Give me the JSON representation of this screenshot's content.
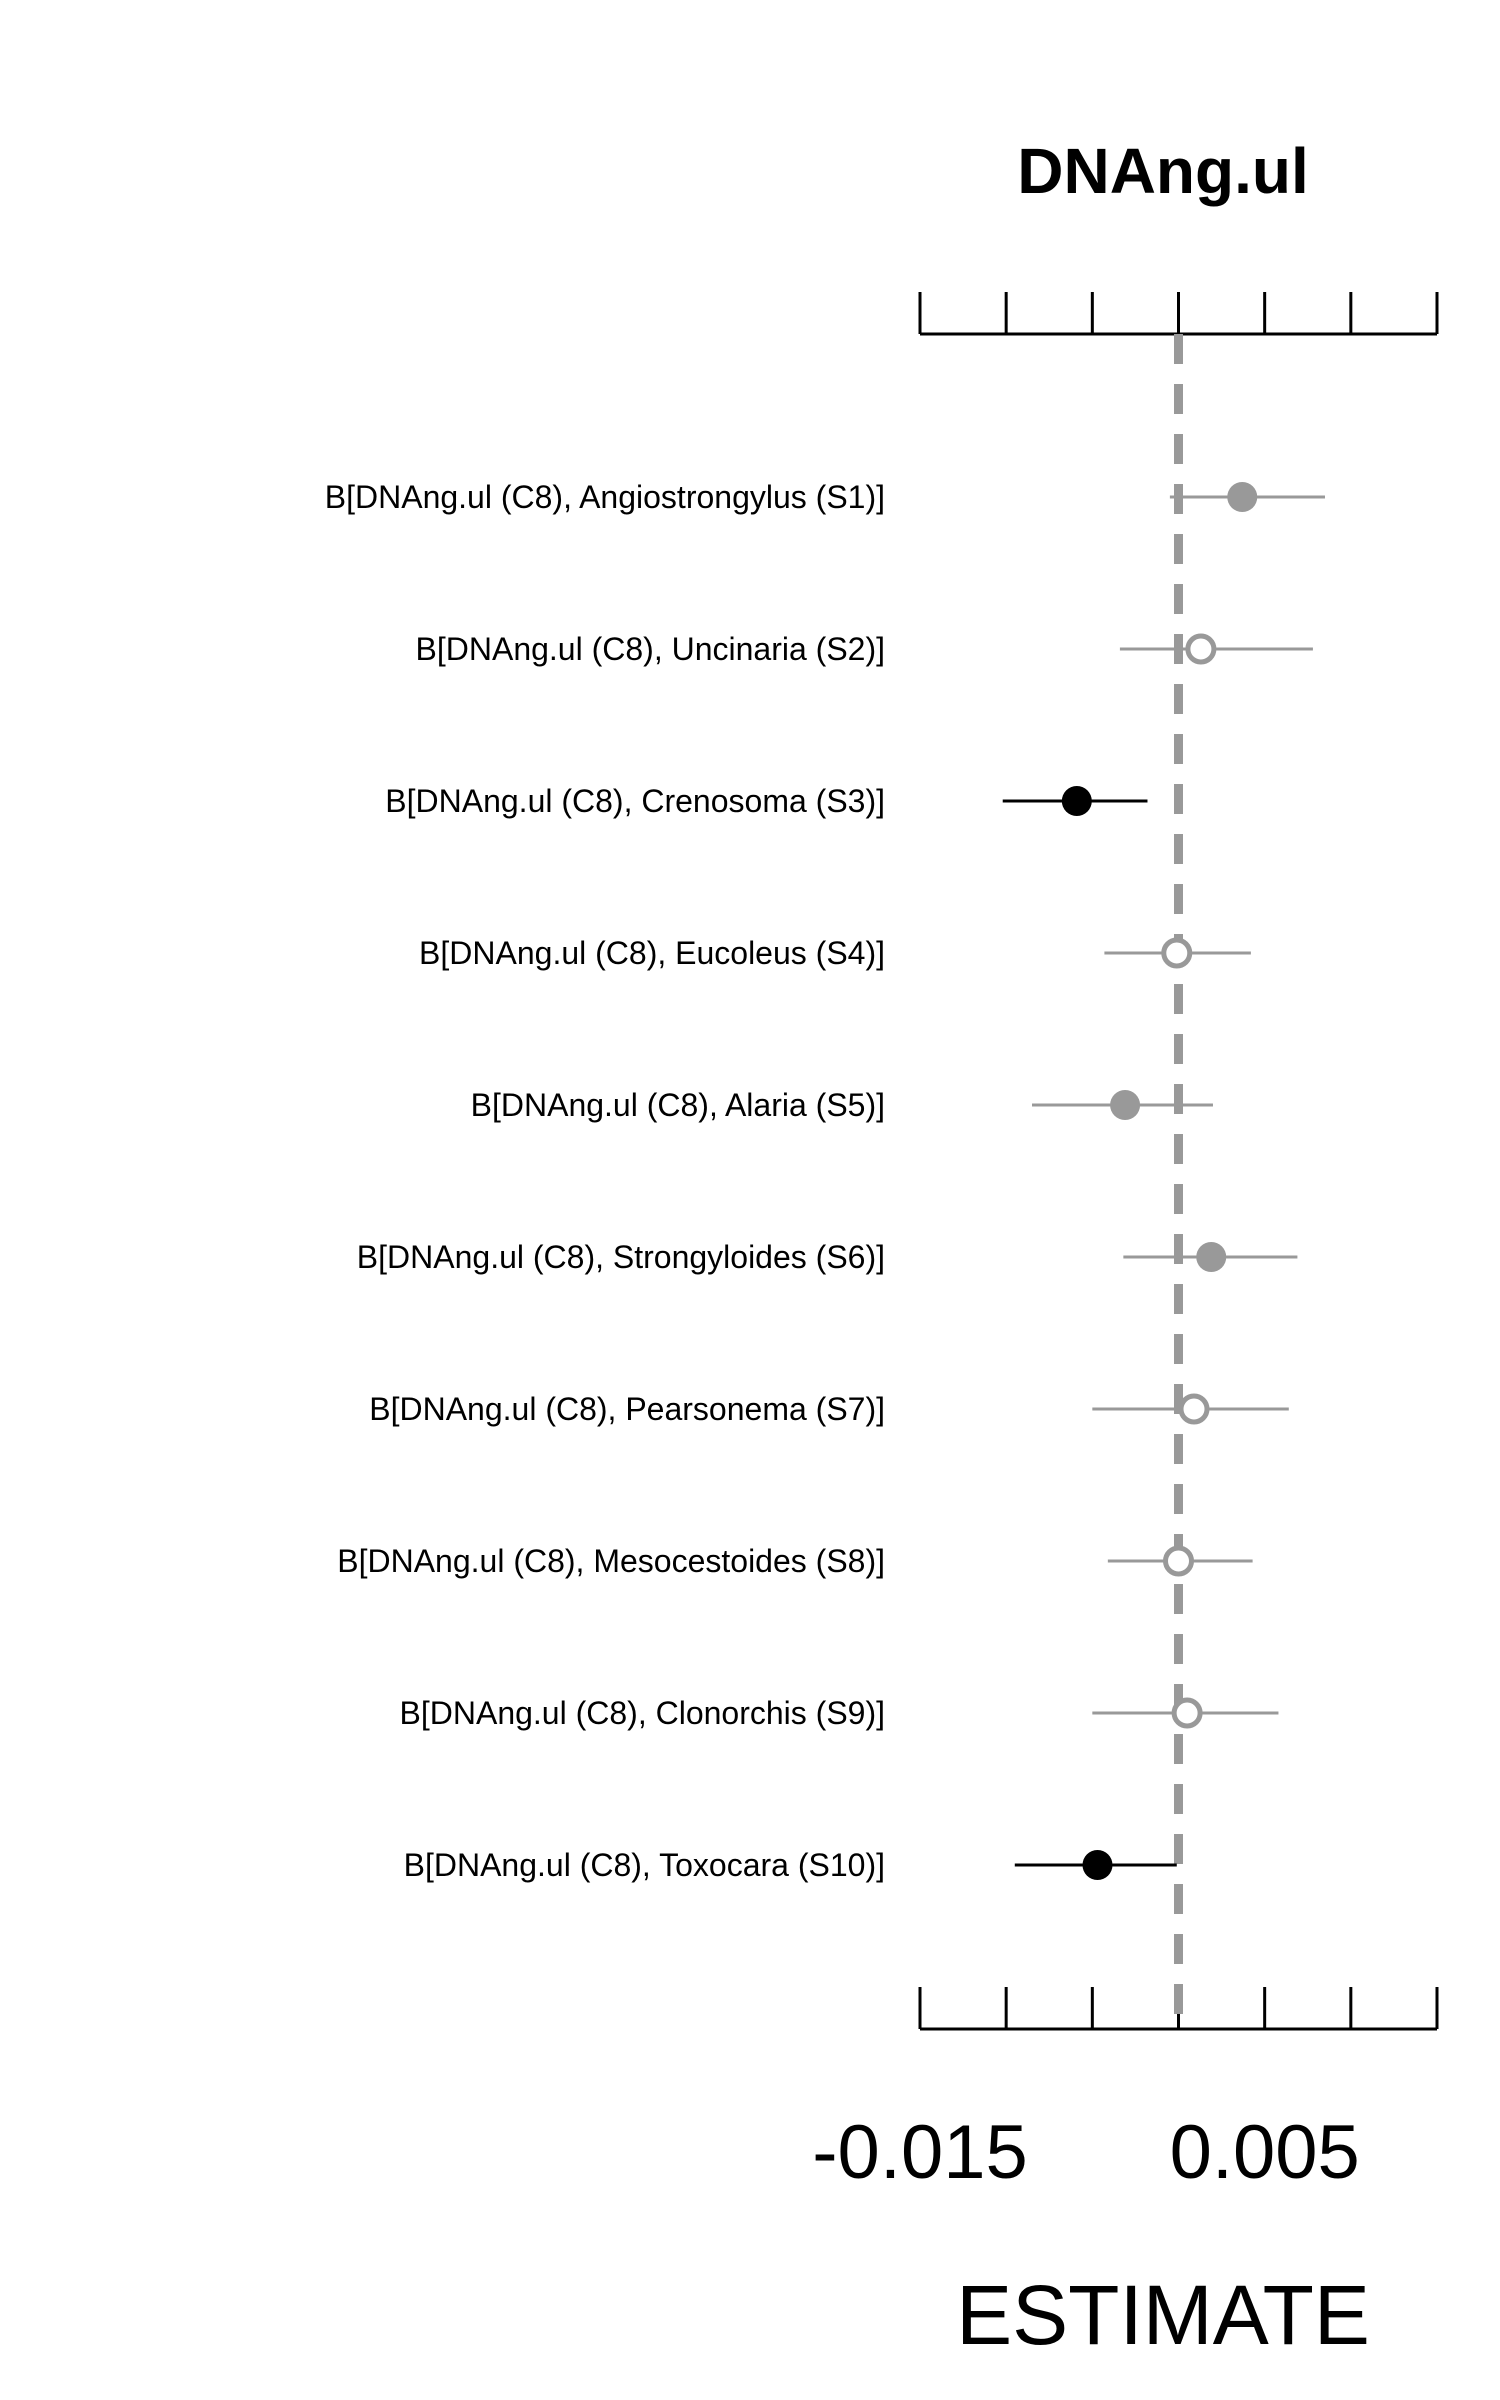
{
  "chart_data": {
    "type": "scatter",
    "title": "DNAng.ul",
    "xlabel": "ESTIMATE",
    "ylabel": "",
    "xlim": [
      -0.015,
      0.015
    ],
    "x_ticks": [
      -0.015,
      -0.01,
      -0.005,
      0,
      0.005,
      0.01,
      0.015
    ],
    "x_tick_labels": [
      "-0.015",
      "",
      "",
      "",
      "0.005",
      "",
      ""
    ],
    "reference_line": 0,
    "grid": false,
    "colors": {
      "significant": "#000000",
      "gray": "#999999",
      "reference": "#999999",
      "axis": "#000000"
    },
    "rows": [
      {
        "label": "B[DNAng.ul (C8), Angiostrongylus (S1)]",
        "estimate": 0.0037,
        "lower": -0.0005,
        "upper": 0.0085,
        "marker": "filled",
        "color": "#999999"
      },
      {
        "label": "B[DNAng.ul (C8), Uncinaria (S2)]",
        "estimate": 0.0013,
        "lower": -0.0034,
        "upper": 0.0078,
        "marker": "open",
        "color": "#999999"
      },
      {
        "label": "B[DNAng.ul (C8), Crenosoma (S3)]",
        "estimate": -0.0059,
        "lower": -0.0102,
        "upper": -0.0018,
        "marker": "filled",
        "color": "#000000"
      },
      {
        "label": "B[DNAng.ul (C8), Eucoleus (S4)]",
        "estimate": -0.0001,
        "lower": -0.0043,
        "upper": 0.0042,
        "marker": "open",
        "color": "#999999"
      },
      {
        "label": "B[DNAng.ul (C8), Alaria (S5)]",
        "estimate": -0.0031,
        "lower": -0.0085,
        "upper": 0.002,
        "marker": "filled",
        "color": "#999999"
      },
      {
        "label": "B[DNAng.ul (C8), Strongyloides (S6)]",
        "estimate": 0.0019,
        "lower": -0.0032,
        "upper": 0.0069,
        "marker": "filled",
        "color": "#999999"
      },
      {
        "label": "B[DNAng.ul (C8), Pearsonema (S7)]",
        "estimate": 0.0009,
        "lower": -0.005,
        "upper": 0.0064,
        "marker": "open",
        "color": "#999999"
      },
      {
        "label": "B[DNAng.ul (C8), Mesocestoides (S8)]",
        "estimate": 0.0,
        "lower": -0.0041,
        "upper": 0.0043,
        "marker": "open",
        "color": "#999999"
      },
      {
        "label": "B[DNAng.ul (C8), Clonorchis (S9)]",
        "estimate": 0.0005,
        "lower": -0.005,
        "upper": 0.0058,
        "marker": "open",
        "color": "#999999"
      },
      {
        "label": "B[DNAng.ul (C8), Toxocara (S10)]",
        "estimate": -0.0047,
        "lower": -0.0095,
        "upper": -0.0001,
        "marker": "filled",
        "color": "#000000"
      }
    ]
  }
}
